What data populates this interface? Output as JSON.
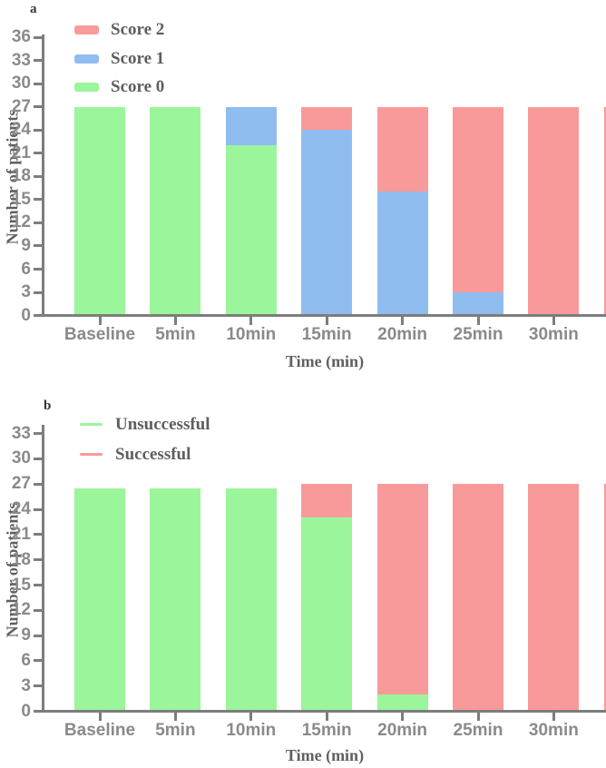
{
  "chart_data": [
    {
      "id": "a",
      "type": "bar",
      "stacked": true,
      "panel_label": "a",
      "title": "",
      "categories": [
        "Baseline",
        "5min",
        "10min",
        "15min",
        "20min",
        "25min",
        "30min"
      ],
      "series": [
        {
          "name": "Score 0",
          "color": "#9bf59b",
          "values": [
            27,
            27,
            22,
            0,
            0,
            0,
            0
          ]
        },
        {
          "name": "Score 1",
          "color": "#8fbdf0",
          "values": [
            0,
            0,
            5,
            24,
            16,
            3,
            0
          ]
        },
        {
          "name": "Score 2",
          "color": "#f99a9a",
          "values": [
            0,
            0,
            0,
            3,
            11,
            24,
            27
          ]
        }
      ],
      "legend": [
        {
          "label": "Score 2",
          "color": "#f99a9a",
          "swatch": "box"
        },
        {
          "label": "Score 1",
          "color": "#8fbdf0",
          "swatch": "box"
        },
        {
          "label": "Score 0",
          "color": "#9bf59b",
          "swatch": "box"
        }
      ],
      "legend_position": "top-left-inside",
      "xlabel": "Time (min)",
      "ylabel": "Number of patients",
      "ylim": [
        0,
        36
      ],
      "ytick_step": 3,
      "yticks": [
        0,
        3,
        6,
        9,
        12,
        15,
        18,
        21,
        24,
        27,
        30,
        33,
        36
      ],
      "grid": false,
      "edge_clipped_bar": {
        "series": "Score 2",
        "value": 27,
        "note": "partial extra bar clipped at right image edge"
      }
    },
    {
      "id": "b",
      "type": "bar",
      "stacked": true,
      "panel_label": "b",
      "title": "",
      "categories": [
        "Baseline",
        "5min",
        "10min",
        "15min",
        "20min",
        "25min",
        "30min"
      ],
      "series": [
        {
          "name": "Unsuccessful",
          "color": "#9bf59b",
          "values": [
            26.5,
            26.5,
            26.5,
            23,
            2,
            0,
            0
          ]
        },
        {
          "name": "Successful",
          "color": "#f99a9a",
          "values": [
            0,
            0,
            0,
            4,
            25,
            27,
            27
          ]
        }
      ],
      "legend": [
        {
          "label": "Unsuccessful",
          "color": "#9bf59b",
          "swatch": "line"
        },
        {
          "label": "Successful",
          "color": "#f99a9a",
          "swatch": "line"
        }
      ],
      "legend_position": "top-left-inside",
      "xlabel": "Time (min)",
      "ylabel": "Number of patients",
      "ylim": [
        0,
        33
      ],
      "ytick_step": 3,
      "yticks": [
        0,
        3,
        6,
        9,
        12,
        15,
        18,
        21,
        24,
        27,
        30,
        33
      ],
      "grid": false,
      "edge_clipped_bar": {
        "series": "Successful",
        "value": 27,
        "note": "partial extra bar clipped at right image edge"
      }
    }
  ]
}
